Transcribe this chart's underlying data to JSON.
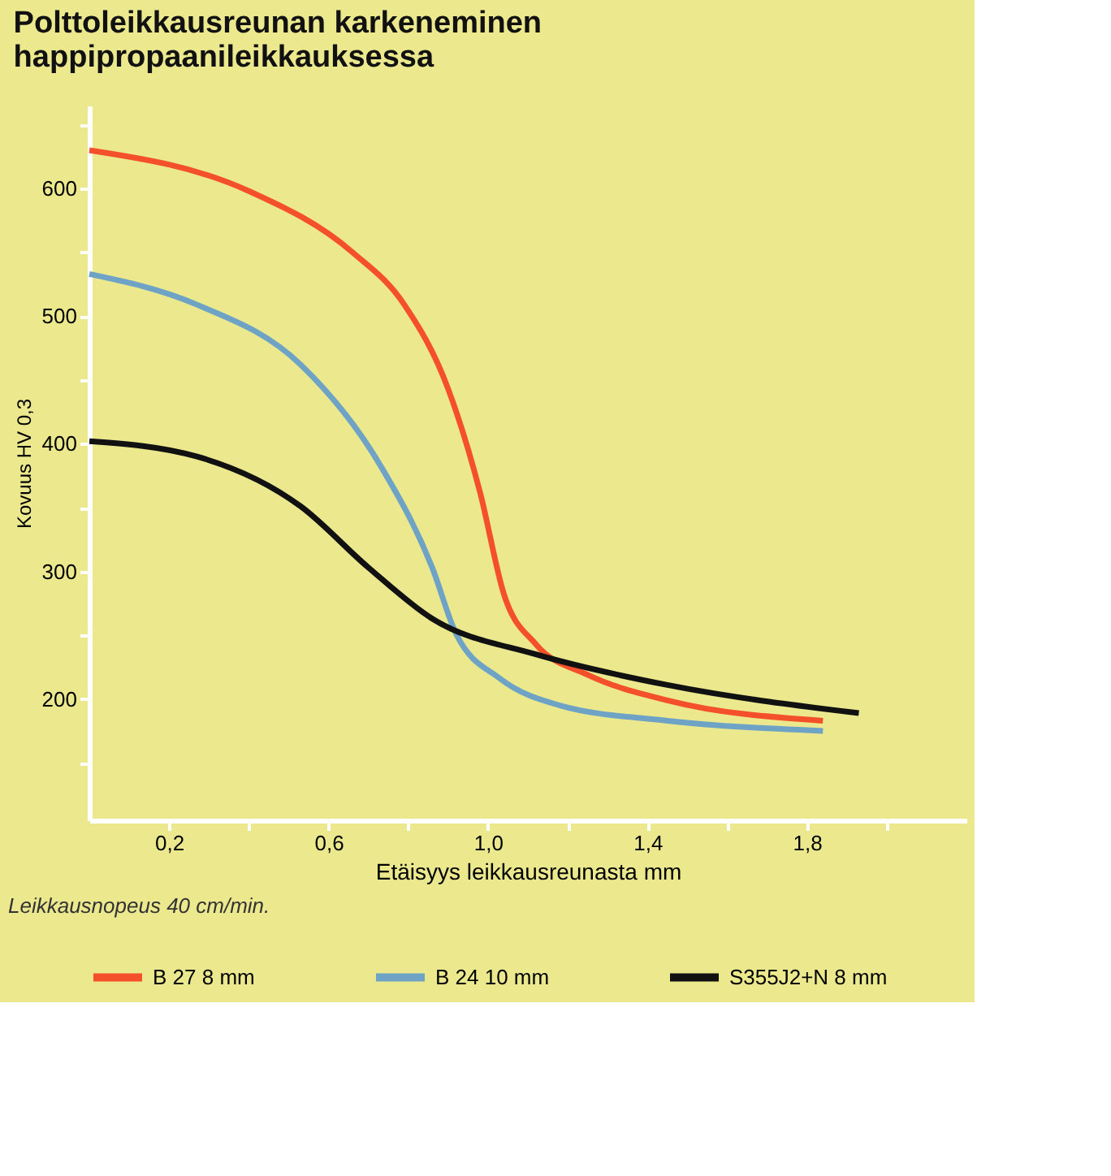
{
  "chart_data": {
    "type": "line",
    "title": "Polttoleikkausreunan karkeneminen\nhappipropaanileikkauksessa",
    "xlabel": "Etäisyys leikkausreunasta mm",
    "ylabel": "Kovuus HV 0,3",
    "xlim": [
      0,
      2.2
    ],
    "xticks": [
      {
        "value": 0.2,
        "label": "0,2"
      },
      {
        "value": 0.4,
        "label": null
      },
      {
        "value": 0.6,
        "label": "0,6"
      },
      {
        "value": 0.8,
        "label": null
      },
      {
        "value": 1.0,
        "label": "1,0"
      },
      {
        "value": 1.2,
        "label": null
      },
      {
        "value": 1.4,
        "label": "1,4"
      },
      {
        "value": 1.6,
        "label": null
      },
      {
        "value": 1.8,
        "label": "1,8"
      },
      {
        "value": 2.0,
        "label": null
      }
    ],
    "ylim": [
      105,
      665
    ],
    "yticks": [
      {
        "value": 150,
        "label": null
      },
      200,
      {
        "value": 250,
        "label": null
      },
      300,
      {
        "value": 350,
        "label": null
      },
      400,
      {
        "value": 450,
        "label": null
      },
      500,
      {
        "value": 550,
        "label": null
      },
      600,
      {
        "value": 650,
        "label": null
      }
    ],
    "grid": false,
    "legend": "bottom",
    "line_style": "solid",
    "series": [
      {
        "name": "B 27  8 mm",
        "color": "#f4502a",
        "x": [
          0.0,
          0.4,
          0.66,
          0.79,
          0.9,
          0.98,
          1.04,
          1.12,
          1.25,
          1.45,
          1.84
        ],
        "values": [
          630,
          598,
          550,
          509,
          443,
          362,
          282,
          243,
          219,
          199,
          183
        ]
      },
      {
        "name": "B 24  10 mm",
        "color": "#6fa3c6",
        "x": [
          0.0,
          0.27,
          0.53,
          0.73,
          0.86,
          0.92,
          1.03,
          1.18,
          1.45,
          1.84
        ],
        "values": [
          533,
          509,
          462,
          383,
          303,
          251,
          216,
          195,
          183,
          175
        ]
      },
      {
        "name": "S355J2+N 8 mm",
        "color": "#111111",
        "x": [
          0.0,
          0.27,
          0.53,
          0.7,
          0.86,
          1.12,
          1.45,
          1.93
        ],
        "values": [
          402,
          390,
          351,
          303,
          263,
          235,
          211,
          189
        ]
      }
    ],
    "annotations": [
      "Leikkausnopeus 40 cm/min."
    ]
  }
}
